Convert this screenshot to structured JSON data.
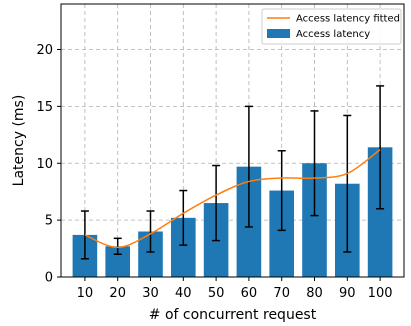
{
  "chart_data": {
    "type": "bar",
    "xlabel": "# of concurrent request",
    "ylabel": "Latency (ms)",
    "categories": [
      "10",
      "20",
      "30",
      "40",
      "50",
      "60",
      "70",
      "80",
      "90",
      "100"
    ],
    "ylim": [
      0,
      24
    ],
    "yticks": [
      0,
      5,
      10,
      15,
      20
    ],
    "grid": true,
    "legend_position": "top-right",
    "series": [
      {
        "name": "Access latency",
        "type": "bar",
        "color": "#1f77b4",
        "values": [
          3.7,
          2.7,
          4.0,
          5.2,
          6.5,
          9.7,
          7.6,
          10.0,
          8.2,
          11.4
        ],
        "error": [
          2.1,
          0.7,
          1.8,
          2.4,
          3.3,
          5.3,
          3.5,
          4.6,
          6.0,
          5.4
        ]
      },
      {
        "name": "Access latency fitted",
        "type": "line",
        "color": "#ff7f0e",
        "values": [
          3.7,
          2.6,
          3.8,
          5.6,
          7.2,
          8.4,
          8.7,
          8.7,
          9.1,
          11.2
        ]
      }
    ]
  }
}
